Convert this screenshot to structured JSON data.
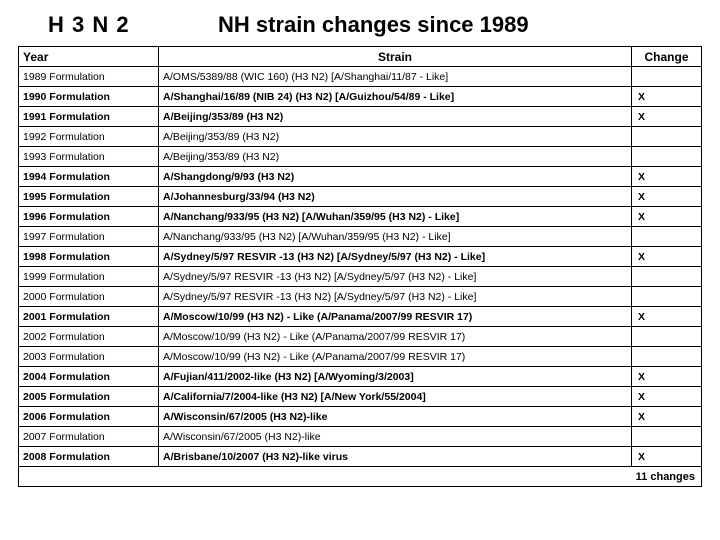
{
  "header": {
    "left": "H 3 N 2",
    "right": "NH strain changes since 1989"
  },
  "table": {
    "columns": [
      "Year",
      "Strain",
      "Change"
    ],
    "rows": [
      {
        "year": "1989 Formulation",
        "strain": "A/OMS/5389/88 (WIC 160) (H3 N2) [A/Shanghai/11/87 - Like]",
        "change": "",
        "bold": false
      },
      {
        "year": "1990 Formulation",
        "strain": "A/Shanghai/16/89 (NIB 24) (H3 N2) [A/Guizhou/54/89 - Like]",
        "change": "X",
        "bold": true
      },
      {
        "year": "1991 Formulation",
        "strain": "A/Beijing/353/89 (H3 N2)",
        "change": "X",
        "bold": true
      },
      {
        "year": "1992 Formulation",
        "strain": "A/Beijing/353/89 (H3 N2)",
        "change": "",
        "bold": false
      },
      {
        "year": "1993 Formulation",
        "strain": "A/Beijing/353/89 (H3 N2)",
        "change": "",
        "bold": false
      },
      {
        "year": "1994 Formulation",
        "strain": "A/Shangdong/9/93 (H3 N2)",
        "change": "X",
        "bold": true
      },
      {
        "year": "1995 Formulation",
        "strain": "A/Johannesburg/33/94 (H3 N2)",
        "change": "X",
        "bold": true
      },
      {
        "year": "1996 Formulation",
        "strain": "A/Nanchang/933/95 (H3 N2) [A/Wuhan/359/95 (H3 N2) - Like]",
        "change": "X",
        "bold": true
      },
      {
        "year": "1997 Formulation",
        "strain": "A/Nanchang/933/95 (H3 N2) [A/Wuhan/359/95 (H3 N2) - Like]",
        "change": "",
        "bold": false
      },
      {
        "year": "1998 Formulation",
        "strain": "A/Sydney/5/97 RESVIR -13 (H3 N2) [A/Sydney/5/97 (H3 N2) - Like]",
        "change": "X",
        "bold": true
      },
      {
        "year": "1999 Formulation",
        "strain": "A/Sydney/5/97 RESVIR -13 (H3 N2) [A/Sydney/5/97 (H3 N2) - Like]",
        "change": "",
        "bold": false
      },
      {
        "year": "2000 Formulation",
        "strain": "A/Sydney/5/97 RESVIR -13 (H3 N2) [A/Sydney/5/97 (H3 N2) - Like]",
        "change": "",
        "bold": false
      },
      {
        "year": "2001 Formulation",
        "strain": "A/Moscow/10/99 (H3 N2) - Like (A/Panama/2007/99 RESVIR 17)",
        "change": "X",
        "bold": true
      },
      {
        "year": "2002 Formulation",
        "strain": "A/Moscow/10/99 (H3 N2) - Like (A/Panama/2007/99 RESVIR 17)",
        "change": "",
        "bold": false
      },
      {
        "year": "2003 Formulation",
        "strain": "A/Moscow/10/99 (H3 N2) - Like (A/Panama/2007/99 RESVIR 17)",
        "change": "",
        "bold": false
      },
      {
        "year": "2004 Formulation",
        "strain": "A/Fujian/411/2002-like (H3 N2) [A/Wyoming/3/2003]",
        "change": "X",
        "bold": true
      },
      {
        "year": "2005 Formulation",
        "strain": "A/California/7/2004-like (H3 N2) [A/New York/55/2004]",
        "change": "X",
        "bold": true
      },
      {
        "year": "2006 Formulation",
        "strain": "A/Wisconsin/67/2005 (H3 N2)-like",
        "change": "X",
        "bold": true
      },
      {
        "year": "2007 Formulation",
        "strain": "A/Wisconsin/67/2005 (H3 N2)-like",
        "change": "",
        "bold": false
      },
      {
        "year": "2008 Formulation",
        "strain": "A/Brisbane/10/2007 (H3 N2)-like virus",
        "change": "X",
        "bold": true
      }
    ],
    "summary": "11 changes"
  }
}
